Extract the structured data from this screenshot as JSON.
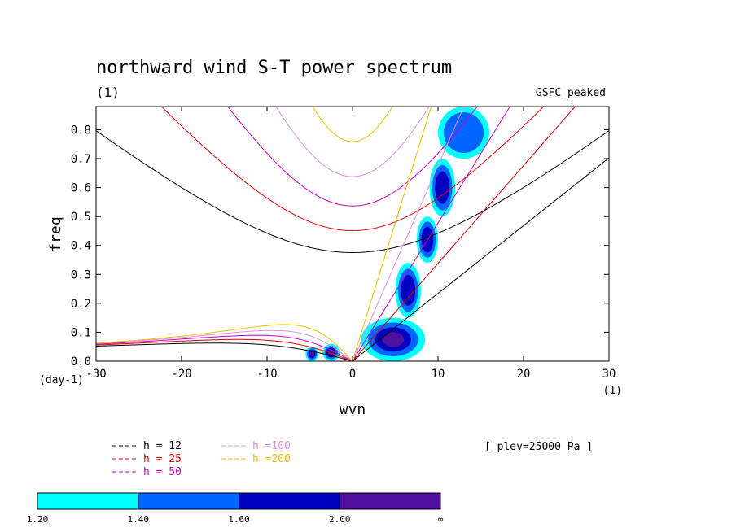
{
  "chart_data": {
    "type": "line",
    "title": "northward wind S-T power spectrum",
    "subtitle_left": "(1)",
    "subtitle_right": "GSFC_peaked",
    "xlabel": "wvn",
    "ylabel": "freq",
    "x_unit": "(1)",
    "y_unit": "(day-1)",
    "xlim": [
      -30,
      30
    ],
    "ylim": [
      0,
      0.88
    ],
    "xticks": [
      -30,
      -20,
      -10,
      0,
      10,
      20,
      30
    ],
    "xtick_labels": [
      "-30",
      "-20",
      "-10",
      "0",
      "10",
      "20",
      "30"
    ],
    "yticks": [
      0.0,
      0.1,
      0.2,
      0.3,
      0.4,
      0.5,
      0.6,
      0.7,
      0.8
    ],
    "ytick_labels": [
      "0.0",
      "0.1",
      "0.2",
      "0.3",
      "0.4",
      "0.5",
      "0.6",
      "0.7",
      "0.8"
    ],
    "annotation": "[ plev=25000 Pa ]",
    "dispersion_curves": [
      {
        "label": "h = 12",
        "h": 12,
        "color": "#000000"
      },
      {
        "label": "h = 25",
        "h": 25,
        "color": "#e00000"
      },
      {
        "label": "h = 50",
        "h": 50,
        "color": "#c800c8"
      },
      {
        "label": "h =100",
        "h": 100,
        "color": "#e090e0"
      },
      {
        "label": "h =200",
        "h": 200,
        "color": "#f0c000"
      }
    ],
    "colorbar": {
      "levels": [
        "1.20",
        "1.40",
        "1.60",
        "2.00",
        "∞"
      ],
      "colors": [
        "#00ffff",
        "#0064ff",
        "#0000c0",
        "#5010a0"
      ]
    },
    "shaded_regions": [
      {
        "x": [
          1,
          8.5
        ],
        "y": [
          0.0,
          0.15
        ],
        "level": 4
      },
      {
        "x": [
          -5.5,
          -4
        ],
        "y": [
          0.0,
          0.05
        ],
        "level": 4
      },
      {
        "x": [
          -3.5,
          -1.5
        ],
        "y": [
          0.0,
          0.06
        ],
        "level": 4
      },
      {
        "x": [
          5,
          8
        ],
        "y": [
          0.15,
          0.34
        ],
        "level": 3
      },
      {
        "x": [
          7.5,
          10
        ],
        "y": [
          0.34,
          0.5
        ],
        "level": 3
      },
      {
        "x": [
          9,
          12
        ],
        "y": [
          0.5,
          0.7
        ],
        "level": 3
      },
      {
        "x": [
          10,
          16
        ],
        "y": [
          0.7,
          0.88
        ],
        "level": 2
      }
    ]
  }
}
